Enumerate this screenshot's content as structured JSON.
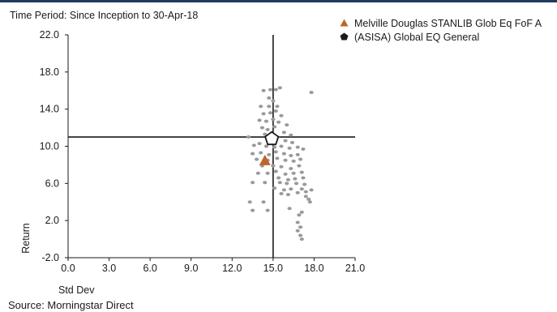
{
  "header": {
    "time_period": "Time Period: Since Inception to 30-Apr-18"
  },
  "footer": {
    "source": "Source: Morningstar Direct"
  },
  "colors": {
    "fund": "#c0652a",
    "peer_group": "#1a1a1a",
    "peers": "#9a9a9a",
    "axes": "#1a1a1a",
    "topbar": "#1f3a5f"
  },
  "icons": {
    "fund": "triangle-icon",
    "peer_group": "pentagon-icon"
  },
  "chart_data": {
    "type": "scatter",
    "title": "",
    "xlabel": "Std Dev",
    "ylabel": "Return",
    "xlim": [
      0,
      21
    ],
    "ylim": [
      -2,
      22
    ],
    "x_ticks": [
      "0.0",
      "3.0",
      "6.0",
      "9.0",
      "12.0",
      "15.0",
      "18.0",
      "21.0"
    ],
    "y_ticks": [
      "22.0",
      "18.0",
      "14.0",
      "10.0",
      "6.0",
      "2.0",
      "-2.0"
    ],
    "x_tick_values": [
      0,
      3,
      6,
      9,
      12,
      15,
      18,
      21
    ],
    "y_tick_values": [
      22,
      18,
      14,
      10,
      6,
      2,
      -2
    ],
    "reference_lines": {
      "x": 15.0,
      "y": 11.0
    },
    "legend_position": "top-right",
    "series": [
      {
        "name": "Melville Douglas STANLIB Glob Eq FoF A",
        "marker": "triangle",
        "points": [
          [
            14.4,
            8.4
          ]
        ]
      },
      {
        "name": "(ASISA) Global EQ General",
        "marker": "pentagon",
        "points": [
          [
            14.9,
            10.8
          ]
        ]
      },
      {
        "marker": "dot",
        "points": [
          [
            14.3,
            16.0
          ],
          [
            14.8,
            16.1
          ],
          [
            15.2,
            16.1
          ],
          [
            15.5,
            16.3
          ],
          [
            17.8,
            15.8
          ],
          [
            14.7,
            15.2
          ],
          [
            15.0,
            14.9
          ],
          [
            14.1,
            14.3
          ],
          [
            14.7,
            14.3
          ],
          [
            15.3,
            14.3
          ],
          [
            14.3,
            13.5
          ],
          [
            14.8,
            13.6
          ],
          [
            15.2,
            13.8
          ],
          [
            15.6,
            13.3
          ],
          [
            14.0,
            12.8
          ],
          [
            14.5,
            12.7
          ],
          [
            15.0,
            12.9
          ],
          [
            15.4,
            12.6
          ],
          [
            16.0,
            12.3
          ],
          [
            14.2,
            12.0
          ],
          [
            14.6,
            11.8
          ],
          [
            15.1,
            12.1
          ],
          [
            15.8,
            11.5
          ],
          [
            16.3,
            11.2
          ],
          [
            14.4,
            11.3
          ],
          [
            15.3,
            11.0
          ],
          [
            15.9,
            10.6
          ],
          [
            16.4,
            10.4
          ],
          [
            13.2,
            11.0
          ],
          [
            13.6,
            10.1
          ],
          [
            14.0,
            10.3
          ],
          [
            14.5,
            10.0
          ],
          [
            15.1,
            9.9
          ],
          [
            15.6,
            10.0
          ],
          [
            16.2,
            9.8
          ],
          [
            16.8,
            9.9
          ],
          [
            17.2,
            9.7
          ],
          [
            13.5,
            9.2
          ],
          [
            14.1,
            9.3
          ],
          [
            14.7,
            9.1
          ],
          [
            15.2,
            9.4
          ],
          [
            15.8,
            9.2
          ],
          [
            16.3,
            9.0
          ],
          [
            16.8,
            9.1
          ],
          [
            13.8,
            8.6
          ],
          [
            14.6,
            8.5
          ],
          [
            15.3,
            8.7
          ],
          [
            15.9,
            8.5
          ],
          [
            16.5,
            8.4
          ],
          [
            17.0,
            8.6
          ],
          [
            14.2,
            7.9
          ],
          [
            15.0,
            7.9
          ],
          [
            15.6,
            7.8
          ],
          [
            16.3,
            7.6
          ],
          [
            16.9,
            7.9
          ],
          [
            13.9,
            7.1
          ],
          [
            14.6,
            7.1
          ],
          [
            15.2,
            7.3
          ],
          [
            15.9,
            7.0
          ],
          [
            16.5,
            7.1
          ],
          [
            17.1,
            7.2
          ],
          [
            15.4,
            6.6
          ],
          [
            16.1,
            6.4
          ],
          [
            16.6,
            6.5
          ],
          [
            17.2,
            6.6
          ],
          [
            13.5,
            6.1
          ],
          [
            14.4,
            6.1
          ],
          [
            15.5,
            6.1
          ],
          [
            16.0,
            6.0
          ],
          [
            16.7,
            6.0
          ],
          [
            17.3,
            5.9
          ],
          [
            15.1,
            5.5
          ],
          [
            15.8,
            5.3
          ],
          [
            16.3,
            5.4
          ],
          [
            17.1,
            5.4
          ],
          [
            16.8,
            5.0
          ],
          [
            17.4,
            5.1
          ],
          [
            17.8,
            5.3
          ],
          [
            15.6,
            4.9
          ],
          [
            16.1,
            4.8
          ],
          [
            17.4,
            4.6
          ],
          [
            17.6,
            4.3
          ],
          [
            13.3,
            4.0
          ],
          [
            14.3,
            4.0
          ],
          [
            17.7,
            4.0
          ],
          [
            13.5,
            3.1
          ],
          [
            14.6,
            3.1
          ],
          [
            16.2,
            3.3
          ],
          [
            17.1,
            2.9
          ],
          [
            16.9,
            2.6
          ],
          [
            16.8,
            1.8
          ],
          [
            17.0,
            1.3
          ],
          [
            16.8,
            0.9
          ],
          [
            17.0,
            0.4
          ],
          [
            17.1,
            0.0
          ]
        ]
      }
    ]
  }
}
